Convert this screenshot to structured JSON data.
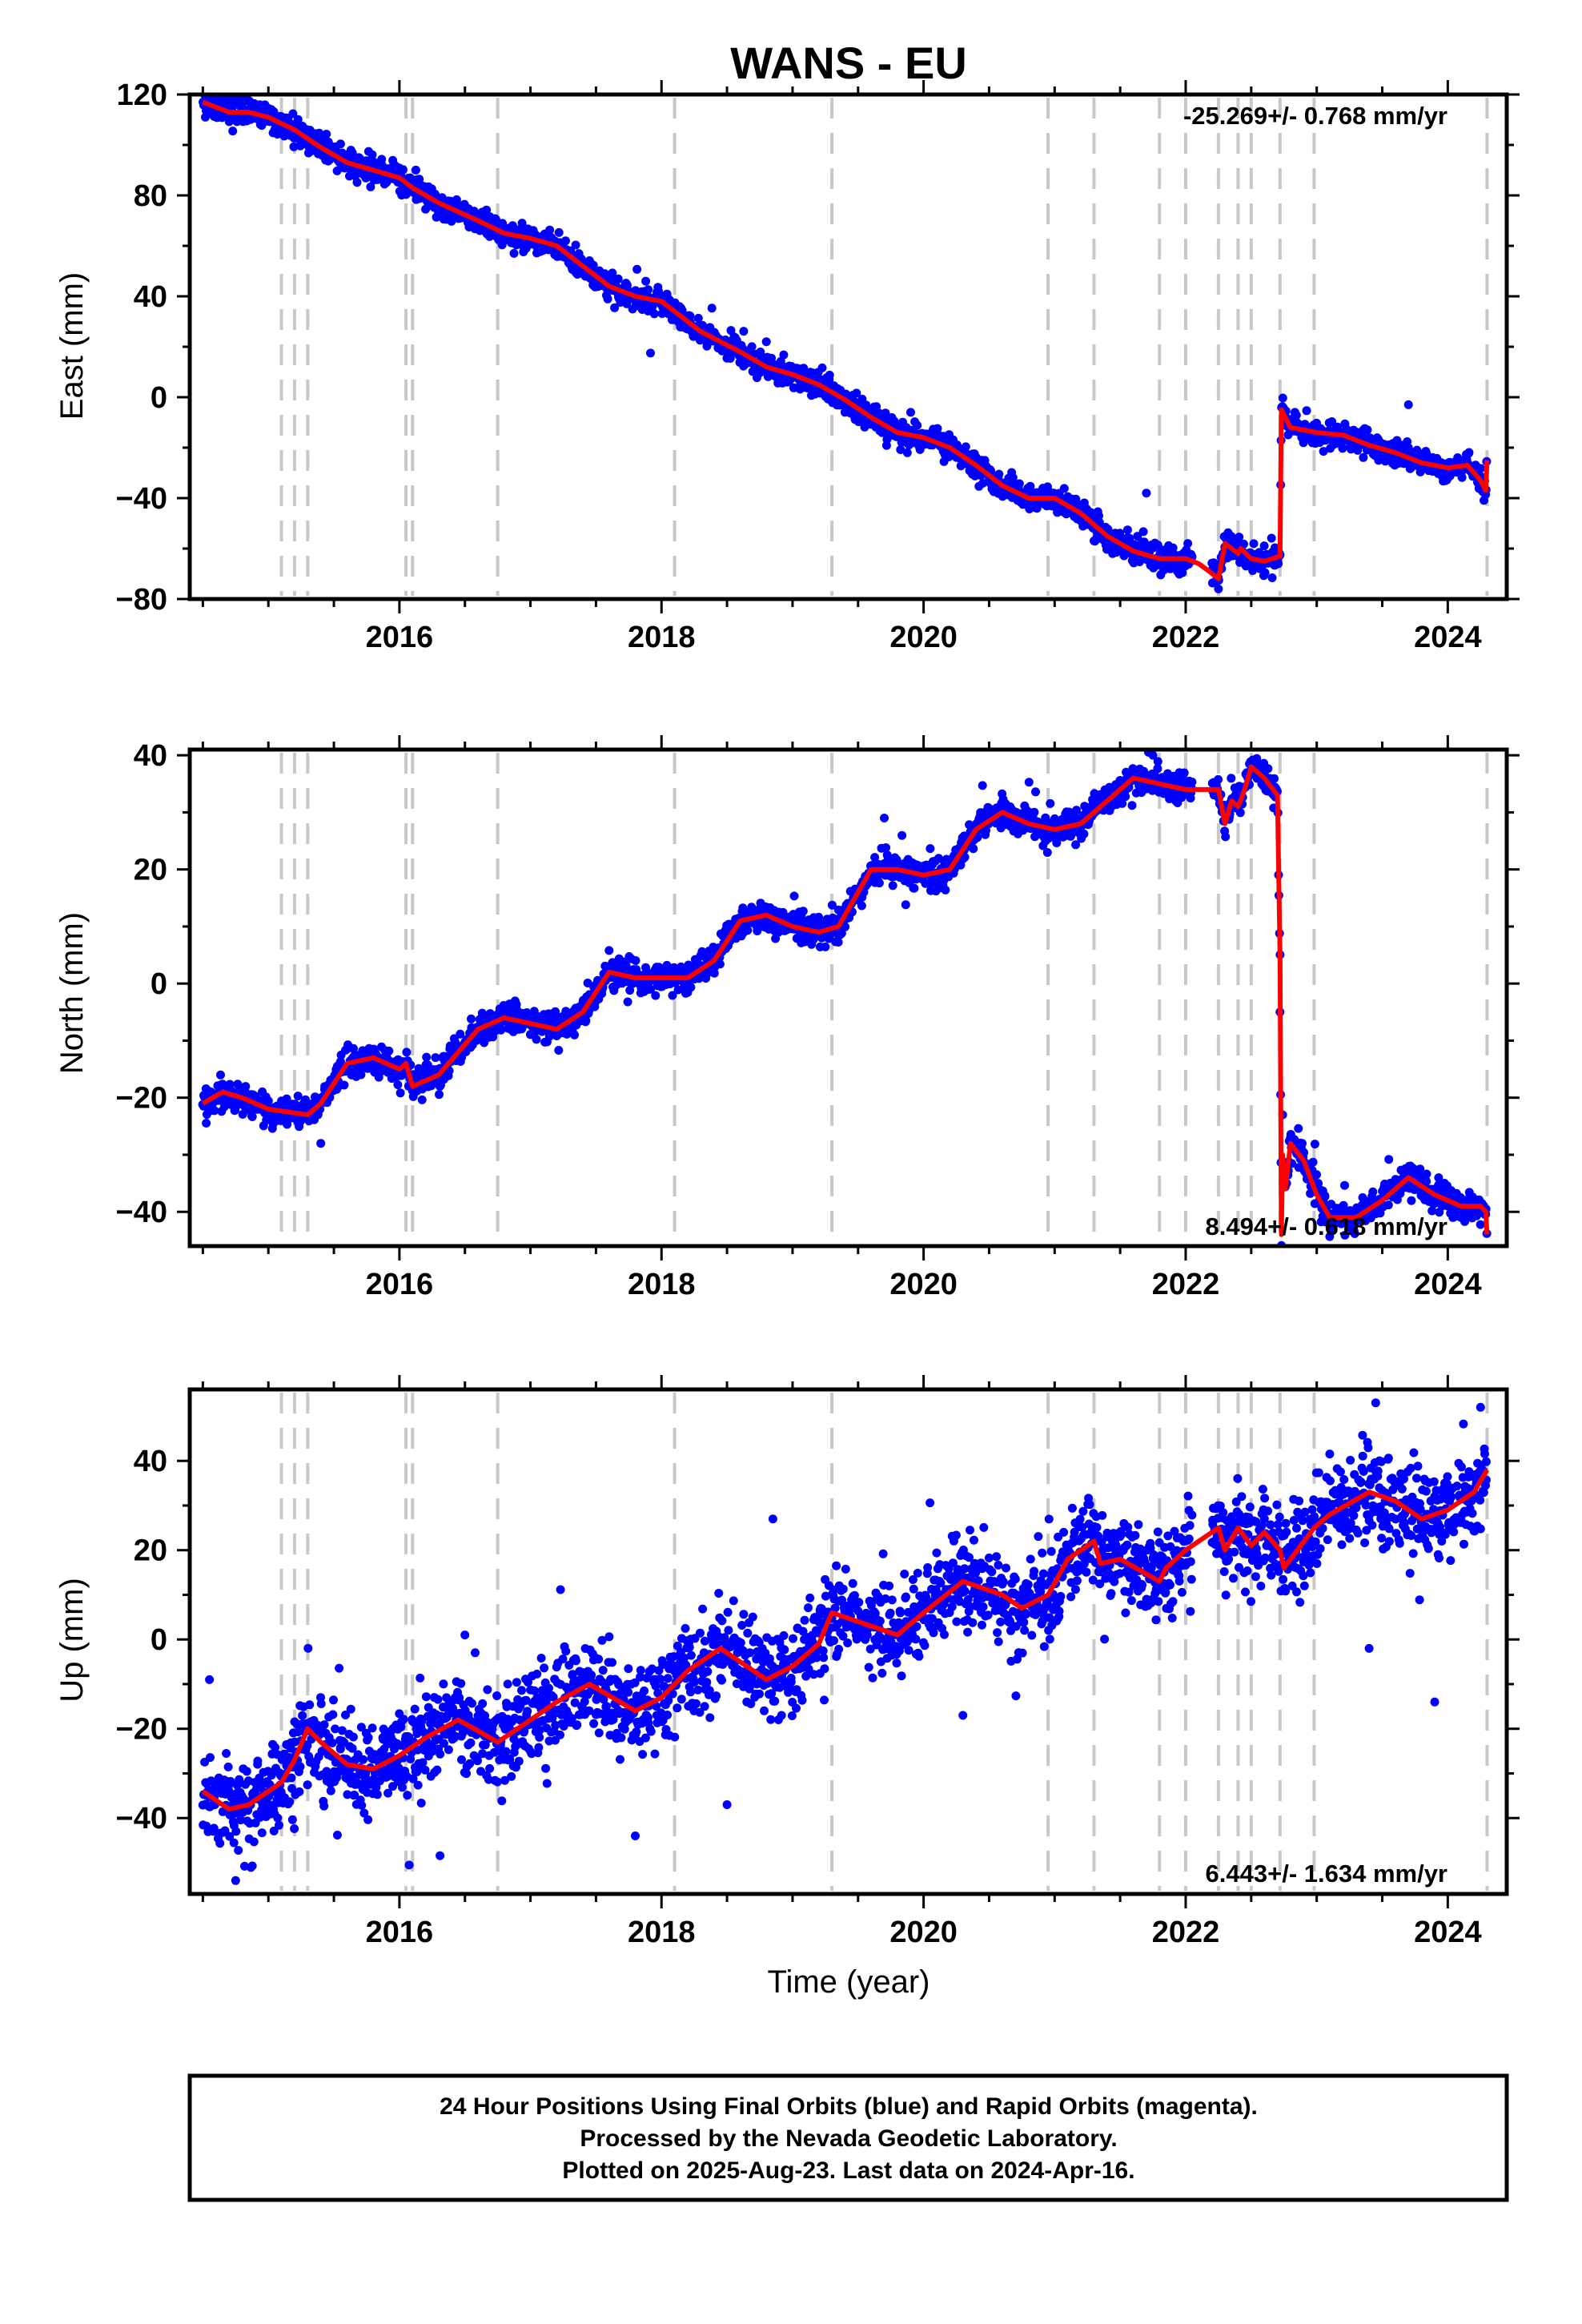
{
  "title": "WANS - EU",
  "x_axis_label": "Time (year)",
  "footer": {
    "line1": "24 Hour Positions Using Final Orbits (blue) and Rapid Orbits (magenta).",
    "line2": "Processed by the Nevada Geodetic Laboratory.",
    "line3": "Plotted on 2025-Aug-23. Last data on 2024-Apr-16."
  },
  "colors": {
    "data_points": "#0000ff",
    "model_fit": "#ff0000",
    "steps": "#c8c8c8",
    "frame": "#000000"
  },
  "chart_data": [
    {
      "type": "scatter",
      "panel": "east",
      "title": "WANS - EU",
      "ylabel": "East (mm)",
      "xlabel": "",
      "rate_text": "-25.269+/- 0.768 mm/yr",
      "rate_position": "top-right",
      "xlim": [
        2014.4,
        2024.45
      ],
      "ylim": [
        -80,
        120
      ],
      "xticks": [
        2016,
        2018,
        2020,
        2022,
        2024
      ],
      "yticks": [
        -80,
        -40,
        0,
        40,
        80,
        120
      ],
      "step_lines": [
        2015.1,
        2015.2,
        2015.3,
        2016.05,
        2016.1,
        2016.75,
        2018.1,
        2019.3,
        2020.95,
        2021.3,
        2021.8,
        2022.0,
        2022.25,
        2022.4,
        2022.5,
        2022.72,
        2022.98,
        2024.3
      ],
      "fit": {
        "x": [
          2014.5,
          2014.7,
          2014.85,
          2015.0,
          2015.2,
          2015.4,
          2015.6,
          2015.8,
          2016.0,
          2016.1,
          2016.3,
          2016.6,
          2016.8,
          2017.0,
          2017.2,
          2017.4,
          2017.6,
          2017.8,
          2018.0,
          2018.1,
          2018.3,
          2018.6,
          2018.8,
          2019.0,
          2019.2,
          2019.4,
          2019.6,
          2019.8,
          2020.0,
          2020.2,
          2020.4,
          2020.6,
          2020.8,
          2021.0,
          2021.2,
          2021.4,
          2021.6,
          2021.8,
          2022.0,
          2022.1,
          2022.18,
          2022.25,
          2022.3,
          2022.4,
          2022.42,
          2022.5,
          2022.6,
          2022.72,
          2022.73,
          2022.8,
          2023.0,
          2023.2,
          2023.4,
          2023.6,
          2023.8,
          2024.0,
          2024.15,
          2024.25,
          2024.29,
          2024.3
        ],
        "y": [
          117,
          113,
          113,
          111,
          106,
          99,
          93,
          90,
          87,
          83,
          77,
          70,
          65,
          63,
          60,
          52,
          44,
          40,
          38,
          34,
          26,
          18,
          12,
          9,
          5,
          -1,
          -8,
          -14,
          -16,
          -20,
          -27,
          -35,
          -40,
          -40,
          -46,
          -55,
          -61,
          -64,
          -64,
          -66,
          -69,
          -72,
          -58,
          -62,
          -60,
          -64,
          -65,
          -63,
          -5,
          -12,
          -14,
          -15,
          -19,
          -22,
          -26,
          -28,
          -27,
          -33,
          -37,
          -25
        ]
      },
      "points_model": {
        "count": 2450,
        "noise_std": 2.5,
        "data_start": 2014.5,
        "data_end": 2024.3,
        "gaps": [
          [
            2022.05,
            2022.2
          ]
        ],
        "outliers": [
          [
            2017.88,
            46
          ],
          [
            2018.8,
            22
          ],
          [
            2021.7,
            -38
          ],
          [
            2023.7,
            -3
          ],
          [
            2014.55,
            117
          ],
          [
            2022.25,
            -76
          ]
        ]
      }
    },
    {
      "type": "scatter",
      "panel": "north",
      "ylabel": "North (mm)",
      "xlabel": "",
      "rate_text": "8.494+/- 0.618 mm/yr",
      "rate_position": "bottom-right",
      "xlim": [
        2014.4,
        2024.45
      ],
      "ylim": [
        -46,
        41
      ],
      "xticks": [
        2016,
        2018,
        2020,
        2022,
        2024
      ],
      "yticks": [
        -40,
        -20,
        0,
        20,
        40
      ],
      "step_lines": [
        2015.1,
        2015.2,
        2015.3,
        2016.05,
        2016.1,
        2016.75,
        2018.1,
        2019.3,
        2020.95,
        2021.3,
        2021.8,
        2022.0,
        2022.25,
        2022.4,
        2022.5,
        2022.72,
        2022.98,
        2024.3
      ],
      "fit": {
        "x": [
          2014.5,
          2014.65,
          2014.8,
          2015.0,
          2015.3,
          2015.4,
          2015.6,
          2015.8,
          2016.0,
          2016.05,
          2016.1,
          2016.3,
          2016.6,
          2016.8,
          2017.0,
          2017.2,
          2017.4,
          2017.6,
          2017.8,
          2018.0,
          2018.2,
          2018.4,
          2018.6,
          2018.8,
          2019.0,
          2019.2,
          2019.35,
          2019.6,
          2019.8,
          2020.0,
          2020.2,
          2020.4,
          2020.6,
          2020.8,
          2021.0,
          2021.2,
          2021.4,
          2021.6,
          2021.8,
          2022.0,
          2022.2,
          2022.25,
          2022.3,
          2022.35,
          2022.4,
          2022.45,
          2022.5,
          2022.6,
          2022.7,
          2022.72,
          2022.73,
          2022.74,
          2022.76,
          2022.8,
          2022.9,
          2023.0,
          2023.1,
          2023.3,
          2023.5,
          2023.7,
          2023.9,
          2024.1,
          2024.25,
          2024.29,
          2024.3
        ],
        "y": [
          -21,
          -19,
          -20,
          -22,
          -23,
          -21,
          -14,
          -13,
          -15,
          -14,
          -18,
          -16,
          -8,
          -6,
          -7,
          -8,
          -5,
          2,
          1,
          1,
          1,
          4,
          11,
          12,
          10,
          9,
          10,
          20,
          20,
          19,
          20,
          27,
          30,
          28,
          27,
          28,
          32,
          36,
          35,
          34,
          34,
          34,
          28,
          32,
          31,
          34,
          38,
          36,
          33,
          5,
          -44,
          -30,
          -36,
          -28,
          -31,
          -37,
          -41,
          -41,
          -38,
          -34,
          -37,
          -39,
          -39,
          -40,
          -44
        ]
      },
      "points_model": {
        "count": 2450,
        "noise_std": 1.3,
        "data_start": 2014.5,
        "data_end": 2024.3,
        "gaps": [
          [
            2022.05,
            2022.2
          ]
        ],
        "outliers": [
          [
            2019.7,
            29
          ],
          [
            2022.72,
            -5
          ],
          [
            2015.4,
            -28
          ],
          [
            2022.74,
            -23
          ],
          [
            2021.75,
            40
          ]
        ]
      }
    },
    {
      "type": "scatter",
      "panel": "up",
      "ylabel": "Up (mm)",
      "xlabel": "Time (year)",
      "rate_text": "6.443+/- 1.634 mm/yr",
      "rate_position": "bottom-right",
      "xlim": [
        2014.4,
        2024.45
      ],
      "ylim": [
        -57,
        56
      ],
      "xticks": [
        2016,
        2018,
        2020,
        2022,
        2024
      ],
      "yticks": [
        -40,
        -20,
        0,
        20,
        40
      ],
      "step_lines": [
        2015.1,
        2015.2,
        2015.3,
        2016.05,
        2016.1,
        2016.75,
        2018.1,
        2019.3,
        2020.95,
        2021.3,
        2021.8,
        2022.0,
        2022.25,
        2022.4,
        2022.5,
        2022.72,
        2022.98,
        2024.3
      ],
      "fit": {
        "x": [
          2014.5,
          2014.7,
          2014.85,
          2015.0,
          2015.1,
          2015.2,
          2015.3,
          2015.4,
          2015.6,
          2015.8,
          2016.0,
          2016.2,
          2016.45,
          2016.75,
          2017.0,
          2017.2,
          2017.45,
          2017.8,
          2018.0,
          2018.2,
          2018.45,
          2018.8,
          2019.0,
          2019.2,
          2019.3,
          2019.5,
          2019.8,
          2020.0,
          2020.3,
          2020.6,
          2020.75,
          2020.95,
          2021.1,
          2021.3,
          2021.35,
          2021.5,
          2021.8,
          2021.85,
          2022.0,
          2022.25,
          2022.3,
          2022.4,
          2022.5,
          2022.6,
          2022.72,
          2022.75,
          2022.98,
          2023.1,
          2023.4,
          2023.6,
          2023.8,
          2024.0,
          2024.2,
          2024.3
        ],
        "y": [
          -34,
          -38,
          -37,
          -34,
          -32,
          -27,
          -20,
          -23,
          -28,
          -29,
          -26,
          -22,
          -18,
          -23,
          -18,
          -14,
          -10,
          -16,
          -13,
          -7,
          -2,
          -9,
          -6,
          -1,
          6,
          4,
          1,
          6,
          13,
          10,
          7,
          10,
          18,
          22,
          17,
          18,
          13,
          16,
          20,
          25,
          20,
          25,
          21,
          24,
          20,
          16,
          25,
          28,
          33,
          31,
          27,
          29,
          33,
          38
        ]
      },
      "points_model": {
        "count": 2450,
        "noise_std": 5.0,
        "data_start": 2014.5,
        "data_end": 2024.3,
        "gaps": [
          [
            2022.05,
            2022.2
          ]
        ],
        "outliers": [
          [
            2014.55,
            -9
          ],
          [
            2014.75,
            -54
          ],
          [
            2017.8,
            -44
          ],
          [
            2018.5,
            -37
          ],
          [
            2018.85,
            27
          ],
          [
            2020.3,
            -17
          ],
          [
            2023.45,
            53
          ],
          [
            2023.9,
            -14
          ],
          [
            2024.25,
            52
          ],
          [
            2016.5,
            1
          ],
          [
            2023.4,
            -2
          ]
        ]
      }
    }
  ]
}
